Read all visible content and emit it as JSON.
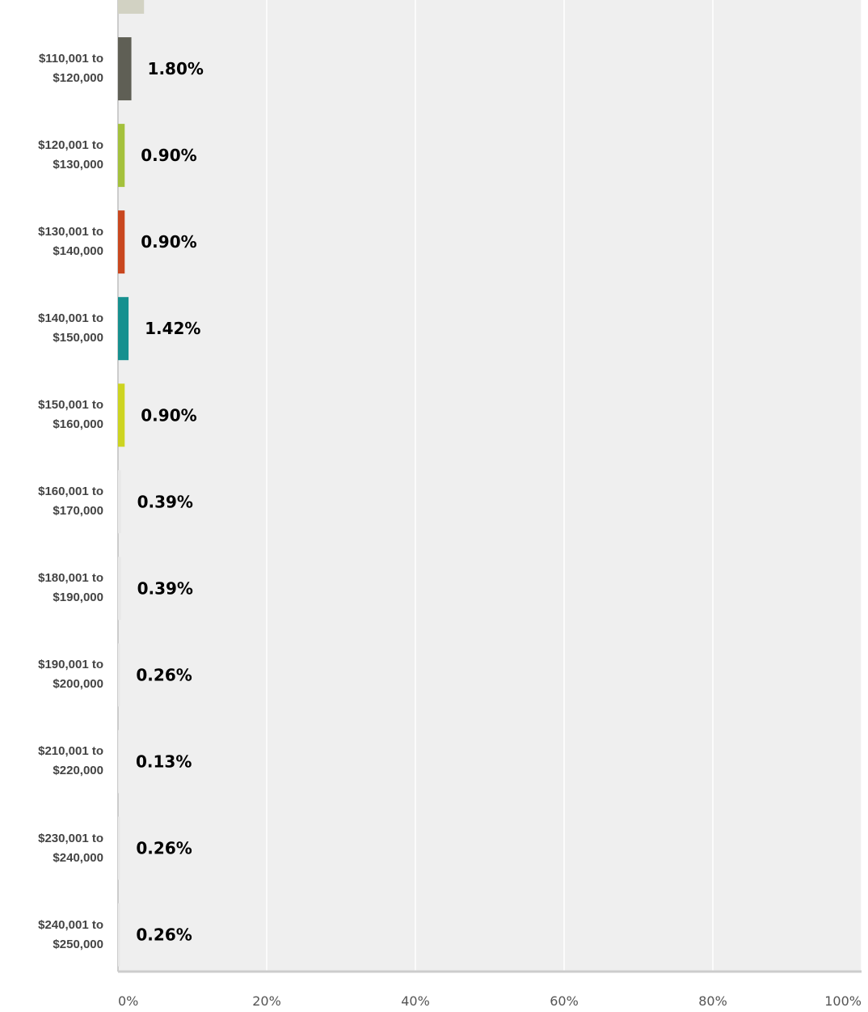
{
  "chart_data": {
    "type": "hbar",
    "categories": [
      null,
      "$110,001 to $120,000",
      "$120,001 to $130,000",
      "$130,001 to $140,000",
      "$140,001 to $150,000",
      "$150,001 to $160,000",
      "$160,001 to $170,000",
      "$180,001 to $190,000",
      "$190,001 to $200,000",
      "$210,001 to $220,000",
      "$230,001 to $240,000",
      "$240,001 to $250,000"
    ],
    "values": [
      3.5,
      1.8,
      0.9,
      0.9,
      1.42,
      0.9,
      0.39,
      0.39,
      0.26,
      0.13,
      0.26,
      0.26
    ],
    "value_labels": [
      null,
      "1.80%",
      "0.90%",
      "0.90%",
      "1.42%",
      "0.90%",
      "0.39%",
      "0.39%",
      "0.26%",
      "0.13%",
      "0.26%",
      "0.26%"
    ],
    "colors": [
      "#d2d2c3",
      "#5f5f55",
      "#a4c13c",
      "#c9471f",
      "#16908f",
      "#cdd421",
      "#e8e8e8",
      "#e8e8e8",
      "#e8e8e8",
      "#e8e8e8",
      "#e8e8e8",
      "#e8e8e8"
    ],
    "xlim": [
      0,
      100
    ],
    "xticks": [
      {
        "value": 0,
        "label": "0%"
      },
      {
        "value": 20,
        "label": "20%"
      },
      {
        "value": 40,
        "label": "40%"
      },
      {
        "value": 60,
        "label": "60%"
      },
      {
        "value": 80,
        "label": "80%"
      },
      {
        "value": 100,
        "label": "100%"
      }
    ],
    "grid": true
  }
}
